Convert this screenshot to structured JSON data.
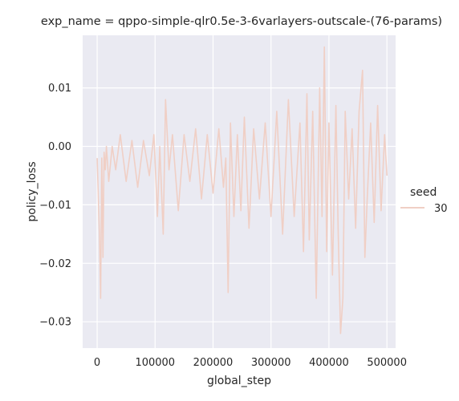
{
  "chart_data": {
    "type": "line",
    "title": "exp_name = qppo-simple-qlr0.5e-3-6varlayers-outscale-(76-params)",
    "xlabel": "global_step",
    "ylabel": "policy_loss",
    "xlim": [
      -25000,
      515000
    ],
    "ylim": [
      -0.0345,
      0.019
    ],
    "x_ticks": [
      0,
      100000,
      200000,
      300000,
      400000,
      500000
    ],
    "x_tick_labels": [
      "0",
      "100000",
      "200000",
      "300000",
      "400000",
      "500000"
    ],
    "y_ticks": [
      -0.03,
      -0.02,
      -0.01,
      0.0,
      0.01
    ],
    "y_tick_labels": [
      "−0.03",
      "−0.02",
      "−0.01",
      "0.00",
      "0.01"
    ],
    "grid": true,
    "legend": {
      "title": "seed",
      "placement": "right",
      "entries": [
        "30"
      ]
    },
    "series": [
      {
        "name": "30",
        "color": "#f0cfc5",
        "x": [
          0,
          4000,
          6000,
          8000,
          10000,
          12000,
          14000,
          16000,
          20000,
          26000,
          32000,
          40000,
          50000,
          60000,
          70000,
          80000,
          90000,
          98000,
          104000,
          108000,
          114000,
          118000,
          124000,
          130000,
          140000,
          150000,
          160000,
          170000,
          180000,
          190000,
          200000,
          210000,
          218000,
          222000,
          226000,
          230000,
          236000,
          242000,
          248000,
          254000,
          262000,
          270000,
          280000,
          290000,
          300000,
          310000,
          320000,
          330000,
          340000,
          350000,
          356000,
          362000,
          366000,
          372000,
          378000,
          384000,
          388000,
          392000,
          396000,
          400000,
          406000,
          412000,
          416000,
          420000,
          424000,
          428000,
          434000,
          440000,
          446000,
          452000,
          458000,
          462000,
          466000,
          472000,
          478000,
          484000,
          490000,
          496000,
          500000
        ],
        "values": [
          -0.002,
          -0.015,
          -0.026,
          -0.002,
          -0.019,
          -0.001,
          -0.004,
          0.0,
          -0.006,
          0.0,
          -0.004,
          0.002,
          -0.006,
          0.001,
          -0.007,
          0.001,
          -0.005,
          0.002,
          -0.012,
          0.0,
          -0.015,
          0.008,
          -0.004,
          0.002,
          -0.011,
          0.002,
          -0.006,
          0.003,
          -0.009,
          0.002,
          -0.008,
          0.003,
          -0.007,
          -0.002,
          -0.025,
          0.004,
          -0.012,
          0.002,
          -0.011,
          0.005,
          -0.014,
          0.003,
          -0.009,
          0.004,
          -0.012,
          0.006,
          -0.015,
          0.008,
          -0.012,
          0.004,
          -0.018,
          0.009,
          -0.016,
          0.006,
          -0.026,
          0.01,
          -0.012,
          0.017,
          -0.018,
          0.004,
          -0.022,
          0.007,
          -0.015,
          -0.032,
          -0.026,
          0.006,
          -0.009,
          0.003,
          -0.014,
          0.006,
          0.013,
          -0.019,
          -0.009,
          0.004,
          -0.013,
          0.007,
          -0.011,
          0.002,
          -0.005
        ]
      }
    ]
  }
}
